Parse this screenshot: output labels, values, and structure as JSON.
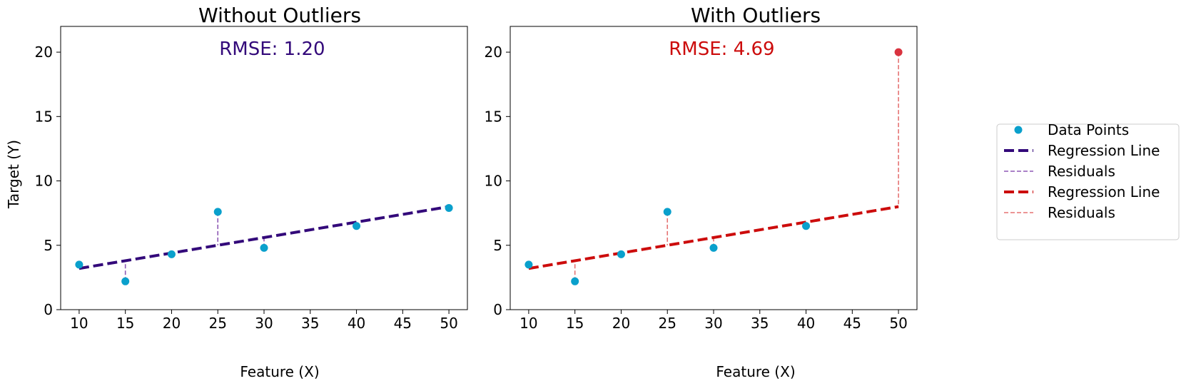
{
  "colors": {
    "points": "#0aa0cc",
    "outlier_point": "#d9333f",
    "left_line": "#33097a",
    "left_residual": "#8d59b5",
    "right_line": "#cc0c0c",
    "right_residual": "#e57373"
  },
  "chart_data": [
    {
      "type": "scatter",
      "title": "Without Outliers",
      "xlabel": "Feature (X)",
      "ylabel": "Target (Y)",
      "xlim": [
        8,
        52
      ],
      "ylim": [
        0,
        22
      ],
      "xticks": [
        10,
        15,
        20,
        25,
        30,
        35,
        40,
        45,
        50
      ],
      "yticks": [
        0,
        5,
        10,
        15,
        20
      ],
      "points": {
        "x": [
          10,
          15,
          20,
          25,
          30,
          40,
          50
        ],
        "y": [
          3.5,
          2.2,
          4.3,
          7.6,
          4.8,
          6.5,
          7.9
        ]
      },
      "regression": {
        "intercept": 2.0,
        "slope": 0.12
      },
      "annotation": "RMSE: 1.20",
      "legend_position": "none"
    },
    {
      "type": "scatter",
      "title": "With Outliers",
      "xlabel": "Feature (X)",
      "ylabel": "",
      "xlim": [
        8,
        52
      ],
      "ylim": [
        0,
        22
      ],
      "xticks": [
        10,
        15,
        20,
        25,
        30,
        35,
        40,
        45,
        50
      ],
      "yticks": [
        0,
        5,
        10,
        15,
        20
      ],
      "points": {
        "x": [
          10,
          15,
          20,
          25,
          30,
          40,
          50
        ],
        "y": [
          3.5,
          2.2,
          4.3,
          7.6,
          4.8,
          6.5,
          20.0
        ]
      },
      "outlier_indices": [
        6
      ],
      "regression": {
        "intercept": 2.0,
        "slope": 0.12
      },
      "annotation": "RMSE: 4.69",
      "legend_position": "right, outside plot"
    }
  ],
  "legend": {
    "items": [
      {
        "label": "Data Points",
        "kind": "marker",
        "color": "#0aa0cc"
      },
      {
        "label": "Regression Line",
        "kind": "thick-dash",
        "color": "#33097a"
      },
      {
        "label": "Residuals",
        "kind": "thin-dash",
        "color": "#8d59b5"
      },
      {
        "label": "Regression Line",
        "kind": "thick-dash",
        "color": "#cc0c0c"
      },
      {
        "label": "Residuals",
        "kind": "thin-dash",
        "color": "#e57373"
      }
    ]
  }
}
